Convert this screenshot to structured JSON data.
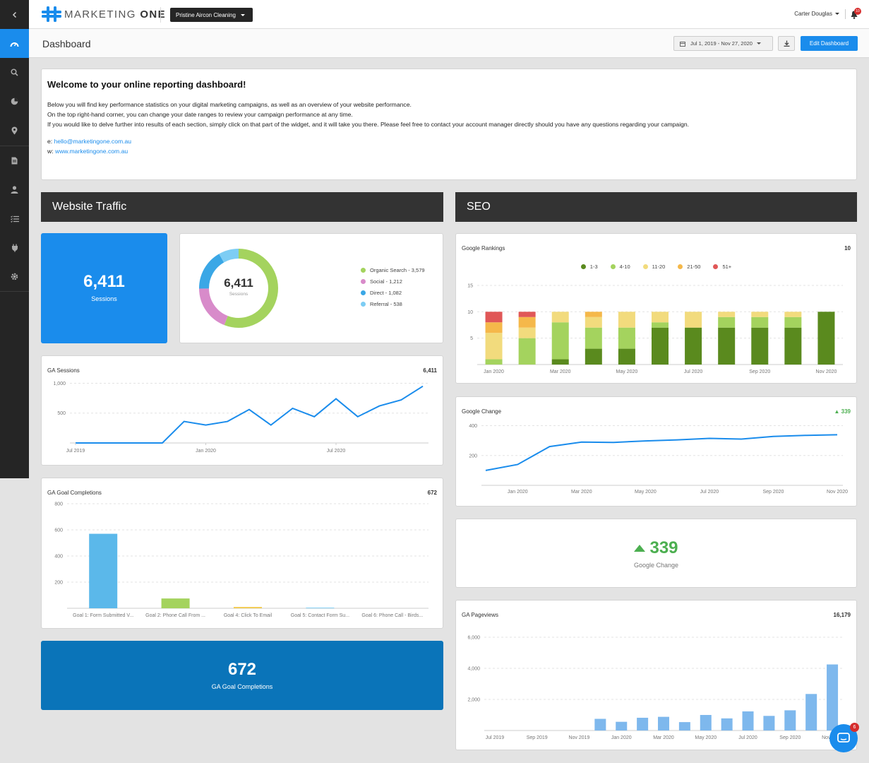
{
  "brand": {
    "name_light": "MARKETING ",
    "name_bold": "ONE"
  },
  "client_select": {
    "label": "Pristine Aircon Cleaning"
  },
  "user": {
    "name": "Carter Douglas",
    "notifications": "10"
  },
  "page_title": "Dashboard",
  "date_range": "Jul 1, 2019 - Nov 27, 2020",
  "edit_label": "Edit Dashboard",
  "welcome": {
    "title": "Welcome to your online reporting dashboard!",
    "line1": "Below you will find key performance statistics on your digital marketing campaigns, as well as an overview of your website performance.",
    "line2": "On the top right-hand corner, you can change your date ranges to review your campaign performance at any time.",
    "line3": "If you would like to delve further into results of each section, simply click on that part of the widget, and it will take you there. Please feel free to contact your account manager directly should you have any questions regarding your campaign.",
    "email_prefix": "e: ",
    "email": "hello@marketingone.com.au",
    "web_prefix": "w: ",
    "web": "www.marketingone.com.au"
  },
  "sections": {
    "traffic": "Website Traffic",
    "seo": "SEO"
  },
  "sessions_card": {
    "value": "6,411",
    "label": "Sessions"
  },
  "donut": {
    "value": "6,411",
    "label": "Sessions",
    "legend": [
      {
        "label": "Organic Search - 3,579",
        "color": "#a4d35e"
      },
      {
        "label": "Social - 1,212",
        "color": "#d88bca"
      },
      {
        "label": "Direct - 1,082",
        "color": "#3aa7e6"
      },
      {
        "label": "Referral - 538",
        "color": "#7dcdf4"
      }
    ]
  },
  "ga_sessions": {
    "title": "GA Sessions",
    "total": "6,411"
  },
  "ga_goals": {
    "title": "GA Goal Completions",
    "total": "672"
  },
  "goals_card": {
    "value": "672",
    "label": "GA Goal Completions"
  },
  "rankings": {
    "title": "Google Rankings",
    "total": "10",
    "legend": [
      {
        "label": "1-3",
        "color": "#5a8a1e"
      },
      {
        "label": "4-10",
        "color": "#a4d35e"
      },
      {
        "label": "11-20",
        "color": "#f2db7d"
      },
      {
        "label": "21-50",
        "color": "#f5b84a"
      },
      {
        "label": "51+",
        "color": "#e05757"
      }
    ]
  },
  "google_change": {
    "title": "Google Change",
    "delta": "339"
  },
  "change_card": {
    "value": "339",
    "label": "Google Change"
  },
  "pageviews": {
    "title": "GA Pageviews",
    "total": "16,179"
  },
  "chat_badge": "6",
  "chart_data": [
    {
      "type": "pie",
      "title": "Sessions",
      "categories": [
        "Organic Search",
        "Social",
        "Direct",
        "Referral"
      ],
      "values": [
        3579,
        1212,
        1082,
        538
      ]
    },
    {
      "type": "line",
      "title": "GA Sessions",
      "x": [
        "Jul 2019",
        "Aug 2019",
        "Sep 2019",
        "Oct 2019",
        "Nov 2019",
        "Dec 2019",
        "Jan 2020",
        "Feb 2020",
        "Mar 2020",
        "Apr 2020",
        "May 2020",
        "Jun 2020",
        "Jul 2020",
        "Aug 2020",
        "Sep 2020",
        "Oct 2020",
        "Nov 2020"
      ],
      "values": [
        0,
        0,
        0,
        0,
        0,
        360,
        300,
        360,
        560,
        300,
        580,
        440,
        740,
        440,
        620,
        720,
        950
      ],
      "ylim": [
        0,
        1100
      ],
      "yticks": [
        "500",
        "1,000"
      ],
      "xticks": [
        "Jul 2019",
        "Jan 2020",
        "Jul 2020"
      ]
    },
    {
      "type": "bar",
      "title": "GA Goal Completions",
      "categories": [
        "Goal 1: Form Submitted V...",
        "Goal 2: Phone Call From ...",
        "Goal 4: Click To Email",
        "Goal 5: Contact Form Su...",
        "Goal 6: Phone Call - Birds..."
      ],
      "values": [
        570,
        75,
        10,
        5,
        0
      ],
      "ylim": [
        0,
        800
      ],
      "yticks": [
        "200",
        "400",
        "600",
        "800"
      ]
    },
    {
      "type": "bar",
      "stacked": true,
      "title": "Google Rankings",
      "x": [
        "Jan 2020",
        "Feb 2020",
        "Mar 2020",
        "Apr 2020",
        "May 2020",
        "Jun 2020",
        "Jul 2020",
        "Aug 2020",
        "Sep 2020",
        "Oct 2020",
        "Nov 2020"
      ],
      "series": [
        {
          "name": "1-3",
          "values": [
            0,
            0,
            1,
            3,
            3,
            7,
            7,
            7,
            7,
            7,
            10
          ]
        },
        {
          "name": "4-10",
          "values": [
            1,
            5,
            7,
            4,
            4,
            1,
            0,
            2,
            2,
            2,
            0
          ]
        },
        {
          "name": "11-20",
          "values": [
            5,
            2,
            2,
            2,
            3,
            2,
            3,
            1,
            1,
            1,
            0
          ]
        },
        {
          "name": "21-50",
          "values": [
            2,
            2,
            0,
            1,
            0,
            0,
            0,
            0,
            0,
            0,
            0
          ]
        },
        {
          "name": "51+",
          "values": [
            2,
            1,
            0,
            0,
            0,
            0,
            0,
            0,
            0,
            0,
            0
          ]
        }
      ],
      "ylim": [
        0,
        17
      ],
      "yticks": [
        "5",
        "10",
        "15"
      ],
      "xticks": [
        "Jan 2020",
        "Mar 2020",
        "May 2020",
        "Jul 2020",
        "Sep 2020",
        "Nov 2020"
      ]
    },
    {
      "type": "line",
      "title": "Google Change",
      "x": [
        "Dec 2019",
        "Jan 2020",
        "Feb 2020",
        "Mar 2020",
        "Apr 2020",
        "May 2020",
        "Jun 2020",
        "Jul 2020",
        "Aug 2020",
        "Sep 2020",
        "Oct 2020",
        "Nov 2020"
      ],
      "values": [
        100,
        140,
        260,
        290,
        288,
        298,
        305,
        315,
        310,
        328,
        335,
        339
      ],
      "ylim": [
        0,
        450
      ],
      "yticks": [
        "200",
        "400"
      ],
      "xticks": [
        "Jan 2020",
        "Mar 2020",
        "May 2020",
        "Jul 2020",
        "Sep 2020",
        "Nov 2020"
      ]
    },
    {
      "type": "bar",
      "title": "GA Pageviews",
      "x": [
        "Jul 2019",
        "Aug 2019",
        "Sep 2019",
        "Oct 2019",
        "Nov 2019",
        "Dec 2019",
        "Jan 2020",
        "Feb 2020",
        "Mar 2020",
        "Apr 2020",
        "May 2020",
        "Jun 2020",
        "Jul 2020",
        "Aug 2020",
        "Sep 2020",
        "Oct 2020",
        "Nov 2020"
      ],
      "values": [
        0,
        0,
        0,
        0,
        0,
        750,
        560,
        820,
        880,
        540,
        1000,
        780,
        1230,
        940,
        1300,
        2350,
        4250
      ],
      "ylim": [
        0,
        7000
      ],
      "yticks": [
        "2,000",
        "4,000",
        "6,000"
      ],
      "xticks": [
        "Jul 2019",
        "Sep 2019",
        "Nov 2019",
        "Jan 2020",
        "Mar 2020",
        "May 2020",
        "Jul 2020",
        "Sep 2020",
        "Nov 2020"
      ]
    }
  ]
}
